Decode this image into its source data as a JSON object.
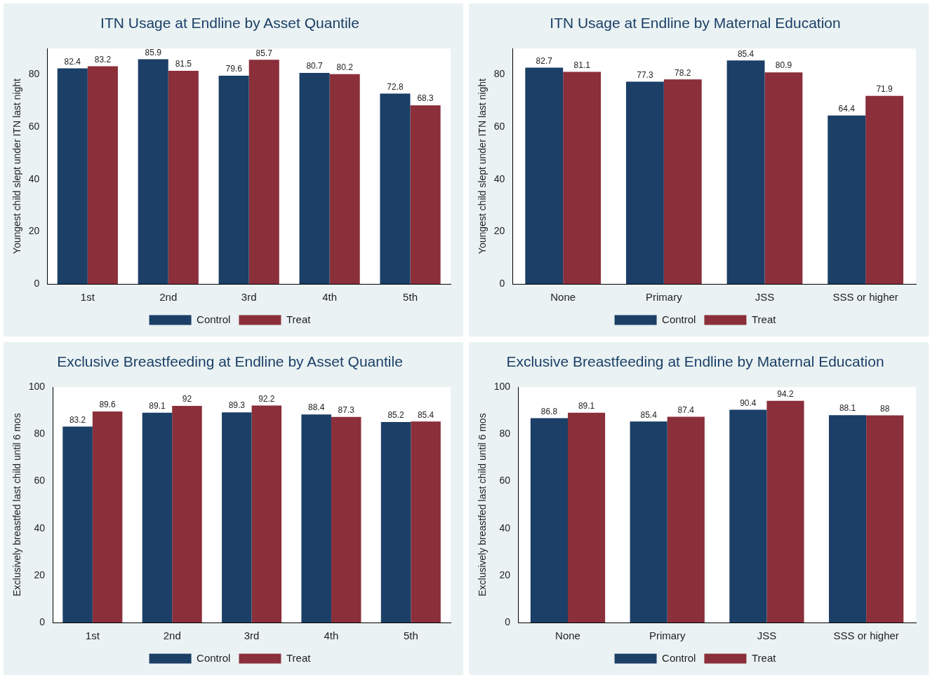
{
  "chart_data": [
    {
      "type": "bar",
      "title": "ITN Usage at Endline by Asset Quantile",
      "ylabel": "Youngest child slept under ITN last night",
      "categories": [
        "1st",
        "2nd",
        "3rd",
        "4th",
        "5th"
      ],
      "series": [
        {
          "name": "Control",
          "color": "#1b3f66",
          "values": [
            82.4,
            85.9,
            79.6,
            80.7,
            72.8
          ]
        },
        {
          "name": "Treat",
          "color": "#8b2f3a",
          "values": [
            83.2,
            81.5,
            85.7,
            80.2,
            68.3
          ]
        }
      ],
      "ylim": [
        0,
        90
      ],
      "yticks": [
        0,
        20,
        40,
        60,
        80
      ],
      "data_labels": true,
      "legend": "bottom",
      "grid": false
    },
    {
      "type": "bar",
      "title": "ITN Usage at Endline by Maternal Education",
      "ylabel": "Youngest child slept under ITN last night",
      "categories": [
        "None",
        "Primary",
        "JSS",
        "SSS or higher"
      ],
      "series": [
        {
          "name": "Control",
          "color": "#1b3f66",
          "values": [
            82.7,
            77.3,
            85.4,
            64.4
          ]
        },
        {
          "name": "Treat",
          "color": "#8b2f3a",
          "values": [
            81.1,
            78.2,
            80.9,
            71.9
          ]
        }
      ],
      "ylim": [
        0,
        90
      ],
      "yticks": [
        0,
        20,
        40,
        60,
        80
      ],
      "data_labels": true,
      "legend": "bottom",
      "grid": false
    },
    {
      "type": "bar",
      "title": "Exclusive Breastfeeding at Endline by Asset Quantile",
      "ylabel": "Exclusively breastfed last child until 6 mos",
      "categories": [
        "1st",
        "2nd",
        "3rd",
        "4th",
        "5th"
      ],
      "series": [
        {
          "name": "Control",
          "color": "#1b3f66",
          "values": [
            83.2,
            89.1,
            89.3,
            88.4,
            85.2
          ]
        },
        {
          "name": "Treat",
          "color": "#8b2f3a",
          "values": [
            89.6,
            92,
            92.2,
            87.3,
            85.4
          ]
        }
      ],
      "ylim": [
        0,
        100
      ],
      "yticks": [
        0,
        20,
        40,
        60,
        80,
        100
      ],
      "data_labels": true,
      "legend": "bottom",
      "grid": false
    },
    {
      "type": "bar",
      "title": "Exclusive Breastfeeding at Endline by Maternal Education",
      "ylabel": "Exclusively breastfed last child until 6 mos",
      "categories": [
        "None",
        "Primary",
        "JSS",
        "SSS or higher"
      ],
      "series": [
        {
          "name": "Control",
          "color": "#1b3f66",
          "values": [
            86.8,
            85.4,
            90.4,
            88.1
          ]
        },
        {
          "name": "Treat",
          "color": "#8b2f3a",
          "values": [
            89.1,
            87.4,
            94.2,
            88
          ]
        }
      ],
      "ylim": [
        0,
        100
      ],
      "yticks": [
        0,
        20,
        40,
        60,
        80,
        100
      ],
      "data_labels": true,
      "legend": "bottom",
      "grid": false
    }
  ]
}
